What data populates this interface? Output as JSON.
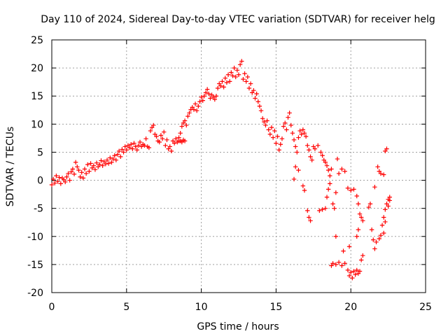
{
  "chart_data": {
    "type": "scatter",
    "title": "Day 110 of 2024, Sidereal Day-to-day VTEC variation (SDTVAR) for receiver helg",
    "xlabel": "GPS time / hours",
    "ylabel": "SDTVAR / TECUs",
    "xlim": [
      0,
      25
    ],
    "ylim": [
      -20,
      25
    ],
    "xticks": [
      0,
      5,
      10,
      15,
      20,
      25
    ],
    "yticks": [
      -20,
      -15,
      -10,
      -5,
      0,
      5,
      10,
      15,
      20,
      25
    ],
    "grid": true,
    "marker": "+",
    "color": "#ff0000",
    "series": [
      {
        "name": "SDTVAR",
        "points": [
          [
            0.0,
            -0.8
          ],
          [
            0.1,
            0.2
          ],
          [
            0.2,
            -0.5
          ],
          [
            0.3,
            0.8
          ],
          [
            0.4,
            -0.2
          ],
          [
            0.5,
            0.5
          ],
          [
            0.6,
            -0.6
          ],
          [
            0.7,
            0.4
          ],
          [
            0.8,
            0.1
          ],
          [
            0.9,
            -0.3
          ],
          [
            1.0,
            0.6
          ],
          [
            1.1,
            1.2
          ],
          [
            1.2,
            0.0
          ],
          [
            1.3,
            1.5
          ],
          [
            1.4,
            2.0
          ],
          [
            1.5,
            1.1
          ],
          [
            1.6,
            3.2
          ],
          [
            1.7,
            2.4
          ],
          [
            1.8,
            1.8
          ],
          [
            1.9,
            0.6
          ],
          [
            2.0,
            1.4
          ],
          [
            2.1,
            0.4
          ],
          [
            2.2,
            2.0
          ],
          [
            2.3,
            1.2
          ],
          [
            2.4,
            2.8
          ],
          [
            2.5,
            1.6
          ],
          [
            2.6,
            3.0
          ],
          [
            2.7,
            2.2
          ],
          [
            2.8,
            2.6
          ],
          [
            2.9,
            1.9
          ],
          [
            3.0,
            3.1
          ],
          [
            3.1,
            2.4
          ],
          [
            3.2,
            2.8
          ],
          [
            3.3,
            3.5
          ],
          [
            3.4,
            2.6
          ],
          [
            3.5,
            3.3
          ],
          [
            3.6,
            2.9
          ],
          [
            3.7,
            3.6
          ],
          [
            3.8,
            3.0
          ],
          [
            3.9,
            4.0
          ],
          [
            4.0,
            3.2
          ],
          [
            4.1,
            3.8
          ],
          [
            4.2,
            4.4
          ],
          [
            4.3,
            3.6
          ],
          [
            4.4,
            4.6
          ],
          [
            4.5,
            5.2
          ],
          [
            4.6,
            4.2
          ],
          [
            4.7,
            5.5
          ],
          [
            4.8,
            5.0
          ],
          [
            4.9,
            6.0
          ],
          [
            5.0,
            5.4
          ],
          [
            5.1,
            6.2
          ],
          [
            5.2,
            5.8
          ],
          [
            5.3,
            6.4
          ],
          [
            5.4,
            5.6
          ],
          [
            5.5,
            6.6
          ],
          [
            5.6,
            6.0
          ],
          [
            5.7,
            5.4
          ],
          [
            5.8,
            6.2
          ],
          [
            5.9,
            6.8
          ],
          [
            6.0,
            6.0
          ],
          [
            6.1,
            6.4
          ],
          [
            6.2,
            6.2
          ],
          [
            6.3,
            7.4
          ],
          [
            6.4,
            6.0
          ],
          [
            6.5,
            5.8
          ],
          [
            6.6,
            8.8
          ],
          [
            6.7,
            9.4
          ],
          [
            6.8,
            9.8
          ],
          [
            6.9,
            8.2
          ],
          [
            7.0,
            7.8
          ],
          [
            7.1,
            7.0
          ],
          [
            7.2,
            6.8
          ],
          [
            7.3,
            8.0
          ],
          [
            7.4,
            7.4
          ],
          [
            7.5,
            8.6
          ],
          [
            7.6,
            6.2
          ],
          [
            7.7,
            7.2
          ],
          [
            7.8,
            5.6
          ],
          [
            7.9,
            6.0
          ],
          [
            8.0,
            5.2
          ],
          [
            8.1,
            7.0
          ],
          [
            8.2,
            6.6
          ],
          [
            8.3,
            7.4
          ],
          [
            8.4,
            6.8
          ],
          [
            8.5,
            7.6
          ],
          [
            8.6,
            7.0
          ],
          [
            8.7,
            6.8
          ],
          [
            8.8,
            7.2
          ],
          [
            8.9,
            7.0
          ],
          [
            8.5,
            7.0
          ],
          [
            8.6,
            8.4
          ],
          [
            8.7,
            9.6
          ],
          [
            8.8,
            10.2
          ],
          [
            8.9,
            10.6
          ],
          [
            9.0,
            9.8
          ],
          [
            9.1,
            11.4
          ],
          [
            9.2,
            12.0
          ],
          [
            9.3,
            12.6
          ],
          [
            9.4,
            13.0
          ],
          [
            9.5,
            12.6
          ],
          [
            9.6,
            13.6
          ],
          [
            9.7,
            12.4
          ],
          [
            9.8,
            13.2
          ],
          [
            9.9,
            14.0
          ],
          [
            10.0,
            14.8
          ],
          [
            10.1,
            14.2
          ],
          [
            10.2,
            15.0
          ],
          [
            10.3,
            15.6
          ],
          [
            10.4,
            16.2
          ],
          [
            10.5,
            15.4
          ],
          [
            10.6,
            14.6
          ],
          [
            10.7,
            15.2
          ],
          [
            10.8,
            14.8
          ],
          [
            10.9,
            14.4
          ],
          [
            11.0,
            15.0
          ],
          [
            11.1,
            16.4
          ],
          [
            11.2,
            17.2
          ],
          [
            11.3,
            16.8
          ],
          [
            11.4,
            17.6
          ],
          [
            11.5,
            16.6
          ],
          [
            11.6,
            18.2
          ],
          [
            11.7,
            17.4
          ],
          [
            11.8,
            18.8
          ],
          [
            11.9,
            17.6
          ],
          [
            12.0,
            19.2
          ],
          [
            12.1,
            18.6
          ],
          [
            12.2,
            20.0
          ],
          [
            12.3,
            18.4
          ],
          [
            12.4,
            19.6
          ],
          [
            12.5,
            18.8
          ],
          [
            12.6,
            20.6
          ],
          [
            12.7,
            21.2
          ],
          [
            12.8,
            18.0
          ],
          [
            12.9,
            19.0
          ],
          [
            13.0,
            17.6
          ],
          [
            13.1,
            18.4
          ],
          [
            13.2,
            16.4
          ],
          [
            13.3,
            17.2
          ],
          [
            13.4,
            15.6
          ],
          [
            13.5,
            16.0
          ],
          [
            13.6,
            14.6
          ],
          [
            13.7,
            15.4
          ],
          [
            13.8,
            14.0
          ],
          [
            13.9,
            13.2
          ],
          [
            14.0,
            12.4
          ],
          [
            14.1,
            11.0
          ],
          [
            14.2,
            10.4
          ],
          [
            14.3,
            9.8
          ],
          [
            14.4,
            10.6
          ],
          [
            14.5,
            9.0
          ],
          [
            14.6,
            8.2
          ],
          [
            14.7,
            9.4
          ],
          [
            14.8,
            7.6
          ],
          [
            14.9,
            8.8
          ],
          [
            15.0,
            6.6
          ],
          [
            15.1,
            7.8
          ],
          [
            15.2,
            5.4
          ],
          [
            15.3,
            6.4
          ],
          [
            15.4,
            7.4
          ],
          [
            15.5,
            9.6
          ],
          [
            15.6,
            10.2
          ],
          [
            15.7,
            9.0
          ],
          [
            15.8,
            11.2
          ],
          [
            15.9,
            12.0
          ],
          [
            16.0,
            9.8
          ],
          [
            16.1,
            8.4
          ],
          [
            16.2,
            7.2
          ],
          [
            16.3,
            6.0
          ],
          [
            16.4,
            5.0
          ],
          [
            16.5,
            7.6
          ],
          [
            16.6,
            8.8
          ],
          [
            16.7,
            8.2
          ],
          [
            16.8,
            9.0
          ],
          [
            16.9,
            8.4
          ],
          [
            17.0,
            7.8
          ],
          [
            17.1,
            6.2
          ],
          [
            17.2,
            5.4
          ],
          [
            17.3,
            4.2
          ],
          [
            17.4,
            3.6
          ],
          [
            16.2,
            0.2
          ],
          [
            16.3,
            2.4
          ],
          [
            16.5,
            1.8
          ],
          [
            16.8,
            -1.0
          ],
          [
            16.9,
            -1.8
          ],
          [
            17.1,
            -5.4
          ],
          [
            17.2,
            -6.6
          ],
          [
            17.3,
            -7.2
          ],
          [
            17.5,
            6.0
          ],
          [
            17.6,
            5.6
          ],
          [
            17.8,
            6.2
          ],
          [
            18.0,
            5.0
          ],
          [
            18.1,
            4.4
          ],
          [
            18.2,
            3.6
          ],
          [
            18.3,
            3.2
          ],
          [
            18.4,
            2.6
          ],
          [
            18.5,
            1.8
          ],
          [
            18.6,
            0.8
          ],
          [
            17.9,
            -5.4
          ],
          [
            18.1,
            -5.2
          ],
          [
            18.3,
            -5.0
          ],
          [
            18.4,
            -3.0
          ],
          [
            18.5,
            -1.6
          ],
          [
            18.6,
            -0.6
          ],
          [
            18.7,
            2.0
          ],
          [
            18.8,
            -4.2
          ],
          [
            18.9,
            -5.0
          ],
          [
            18.7,
            -15.2
          ],
          [
            18.8,
            -14.8
          ],
          [
            19.0,
            -15.0
          ],
          [
            19.2,
            -14.6
          ],
          [
            19.4,
            -15.2
          ],
          [
            19.6,
            -14.8
          ],
          [
            19.8,
            -16.0
          ],
          [
            19.9,
            -17.0
          ],
          [
            20.0,
            -16.4
          ],
          [
            20.1,
            -17.4
          ],
          [
            20.2,
            -16.2
          ],
          [
            20.3,
            -16.8
          ],
          [
            20.4,
            -16.0
          ],
          [
            20.5,
            -16.6
          ],
          [
            20.6,
            -16.2
          ],
          [
            20.7,
            -14.2
          ],
          [
            20.8,
            -13.4
          ],
          [
            19.0,
            -10.0
          ],
          [
            19.5,
            -12.6
          ],
          [
            19.9,
            -11.8
          ],
          [
            19.8,
            -1.4
          ],
          [
            20.0,
            -1.8
          ],
          [
            20.2,
            -1.6
          ],
          [
            20.4,
            -2.8
          ],
          [
            20.5,
            -4.2
          ],
          [
            20.6,
            -6.0
          ],
          [
            20.7,
            -6.6
          ],
          [
            20.8,
            -7.2
          ],
          [
            20.5,
            -8.8
          ],
          [
            20.4,
            -10.0
          ],
          [
            19.4,
            2.0
          ],
          [
            19.6,
            1.6
          ],
          [
            19.1,
            3.8
          ],
          [
            19.2,
            1.2
          ],
          [
            19.0,
            -2.2
          ],
          [
            21.2,
            -4.8
          ],
          [
            21.3,
            -4.2
          ],
          [
            21.4,
            -8.8
          ],
          [
            21.5,
            -10.6
          ],
          [
            21.6,
            -12.2
          ],
          [
            21.7,
            -11.0
          ],
          [
            21.9,
            -10.4
          ],
          [
            22.0,
            -9.8
          ],
          [
            22.1,
            -8.0
          ],
          [
            22.2,
            -6.6
          ],
          [
            22.3,
            -5.2
          ],
          [
            22.4,
            -4.2
          ],
          [
            22.5,
            -3.4
          ],
          [
            22.6,
            -3.0
          ],
          [
            22.2,
            -9.4
          ],
          [
            21.6,
            -1.2
          ],
          [
            21.8,
            2.4
          ],
          [
            21.9,
            1.6
          ],
          [
            22.0,
            1.2
          ],
          [
            22.2,
            1.0
          ],
          [
            22.3,
            5.2
          ],
          [
            22.4,
            5.6
          ],
          [
            22.6,
            -3.6
          ],
          [
            22.5,
            -4.6
          ],
          [
            22.3,
            -7.4
          ]
        ]
      }
    ]
  }
}
